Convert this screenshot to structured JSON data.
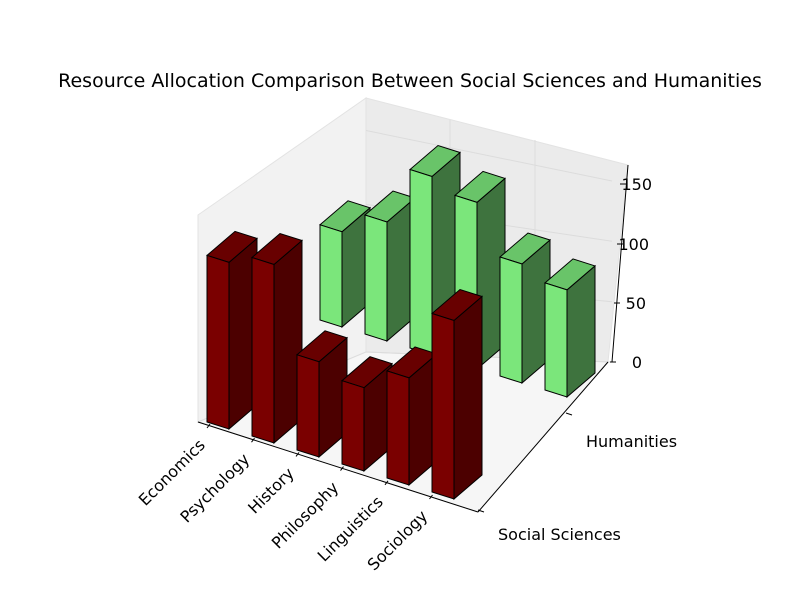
{
  "chart_data": {
    "type": "bar",
    "title": "Resource Allocation Comparison Between Social Sciences and Humanities",
    "categories": [
      "Economics",
      "Psychology",
      "History",
      "Philosophy",
      "Linguistics",
      "Sociology"
    ],
    "series": [
      {
        "name": "Social Sciences",
        "values": [
          140,
          150,
          80,
          70,
          90,
          150
        ],
        "color": "#7a0000"
      },
      {
        "name": "Humanities",
        "values": [
          80,
          100,
          150,
          140,
          100,
          90
        ],
        "color": "#7be67b"
      }
    ],
    "xlabel": "",
    "ylabel": "",
    "zlim": [
      0,
      160
    ],
    "z_ticks": [
      0,
      50,
      100,
      150
    ],
    "grid": true,
    "projection": "3d"
  }
}
